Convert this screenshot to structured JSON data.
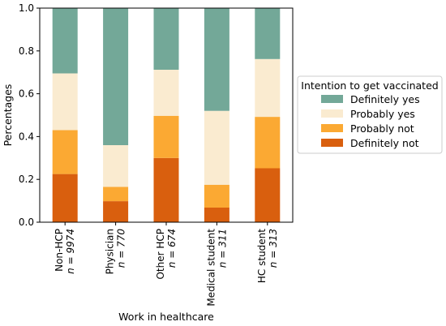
{
  "chart_data": {
    "type": "bar",
    "stacked": true,
    "normalized": true,
    "categories": [
      "Non-HCP",
      "Physician",
      "Other HCP",
      "Medical student",
      "HC student"
    ],
    "n_labels": [
      "n = 9974",
      "n = 770",
      "n = 674",
      "n = 311",
      "n = 313"
    ],
    "series": [
      {
        "name": "Definitely not",
        "color": "#d95f0e",
        "values": [
          0.225,
          0.098,
          0.3,
          0.068,
          0.252
        ]
      },
      {
        "name": "Probably not",
        "color": "#fba933",
        "values": [
          0.205,
          0.067,
          0.197,
          0.107,
          0.24
        ]
      },
      {
        "name": "Probably yes",
        "color": "#faebd0",
        "values": [
          0.265,
          0.195,
          0.215,
          0.345,
          0.27
        ]
      },
      {
        "name": "Definitely yes",
        "color": "#73a898",
        "values": [
          0.305,
          0.64,
          0.288,
          0.48,
          0.238
        ]
      }
    ],
    "xlabel": "Work in healthcare",
    "ylabel": "Percentages",
    "ylim": [
      0,
      1.0
    ],
    "yticks": [
      "0.0",
      "0.2",
      "0.4",
      "0.6",
      "0.8",
      "1.0"
    ],
    "legend": {
      "title": "Intention to get vaccinated",
      "placement": "right",
      "order": [
        "Definitely yes",
        "Probably yes",
        "Probably not",
        "Definitely not"
      ]
    },
    "grid": false
  }
}
